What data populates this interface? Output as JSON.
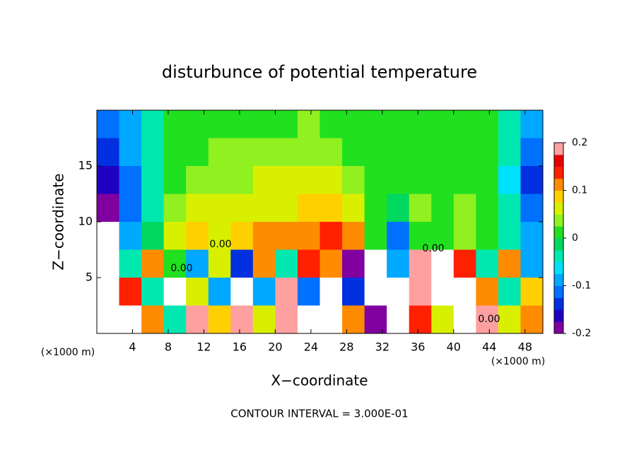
{
  "chart_data": {
    "type": "heatmap",
    "title": "disturbunce of potential temperature",
    "x_label": "X−coordinate",
    "y_label": "Z−coordinate",
    "x_unit_left": "(×1000 m)",
    "x_unit_right": "(×1000 m)",
    "footer": "CONTOUR INTERVAL = 3.000E-01",
    "contour_labels": [
      "0.00",
      "0.00",
      "0.00",
      "0.00"
    ],
    "xlim": [
      0,
      50
    ],
    "ylim": [
      0,
      20
    ],
    "xticks": [
      4,
      8,
      12,
      16,
      20,
      24,
      28,
      32,
      36,
      40,
      44,
      48
    ],
    "yticks": [
      5,
      10,
      15
    ],
    "x": [
      1.25,
      3.75,
      6.25,
      8.75,
      11.25,
      13.75,
      16.25,
      18.75,
      21.25,
      23.75,
      26.25,
      28.75,
      31.25,
      33.75,
      36.25,
      38.75,
      41.25,
      43.75,
      46.25,
      48.75
    ],
    "y": [
      18.75,
      16.25,
      13.75,
      11.25,
      8.75,
      6.25,
      3.75,
      1.25
    ],
    "z": [
      [
        -0.12,
        -0.08,
        -0.04,
        0.0,
        0.02,
        0.02,
        0.02,
        0.02,
        0.02,
        0.03,
        0.02,
        0.01,
        0.0,
        0.0,
        0.01,
        0.02,
        0.01,
        0.0,
        -0.04,
        -0.1
      ],
      [
        -0.15,
        -0.1,
        -0.05,
        0.0,
        0.02,
        0.03,
        0.03,
        0.03,
        0.03,
        0.04,
        0.03,
        0.02,
        0.01,
        0.0,
        0.01,
        0.02,
        0.01,
        0.0,
        -0.05,
        -0.12
      ],
      [
        -0.17,
        -0.12,
        -0.05,
        0.02,
        0.04,
        0.04,
        0.04,
        0.05,
        0.05,
        0.06,
        0.06,
        0.04,
        0.01,
        0.0,
        0.02,
        0.01,
        0.02,
        0.0,
        -0.06,
        -0.13
      ],
      [
        -0.2,
        -0.12,
        -0.04,
        0.04,
        0.06,
        0.05,
        0.05,
        0.07,
        0.07,
        0.08,
        0.08,
        0.05,
        0.0,
        -0.02,
        0.03,
        0.01,
        0.03,
        0.0,
        -0.05,
        -0.12
      ],
      [
        0.3,
        -0.1,
        -0.02,
        0.05,
        0.08,
        0.07,
        0.08,
        0.1,
        0.12,
        0.12,
        0.14,
        0.1,
        0.02,
        -0.12,
        0.0,
        0.02,
        0.03,
        0.01,
        -0.04,
        -0.1
      ],
      [
        0.3,
        -0.05,
        0.1,
        0.0,
        -0.1,
        0.05,
        -0.15,
        0.12,
        -0.05,
        0.15,
        0.1,
        -0.18,
        0.3,
        -0.1,
        0.2,
        -0.3,
        0.15,
        -0.05,
        0.1,
        -0.08
      ],
      [
        0.3,
        0.15,
        -0.05,
        0.25,
        0.05,
        -0.1,
        0.3,
        -0.1,
        0.2,
        -0.12,
        0.25,
        -0.15,
        0.3,
        0.3,
        0.2,
        -0.3,
        -0.3,
        0.1,
        -0.05,
        0.08
      ],
      [
        0.25,
        0.3,
        0.1,
        -0.05,
        0.18,
        0.08,
        0.2,
        0.05,
        0.18,
        0.25,
        0.3,
        0.1,
        -0.2,
        0.3,
        0.15,
        0.05,
        -0.3,
        0.2,
        0.05,
        0.1
      ]
    ],
    "colorbar": {
      "lim": [
        -0.2,
        0.2
      ],
      "ticks": [
        -0.2,
        -0.1,
        0,
        0.1,
        0.2
      ],
      "colors": [
        "#8000a0",
        "#2000c0",
        "#0030e0",
        "#0070ff",
        "#00a8ff",
        "#00e0ff",
        "#00e8b0",
        "#00d860",
        "#20e020",
        "#90f020",
        "#d8f000",
        "#ffd000",
        "#ff8c00",
        "#ff2000",
        "#e80000",
        "#ffa0a0"
      ],
      "out_of_range_color": "#ffffff"
    }
  }
}
